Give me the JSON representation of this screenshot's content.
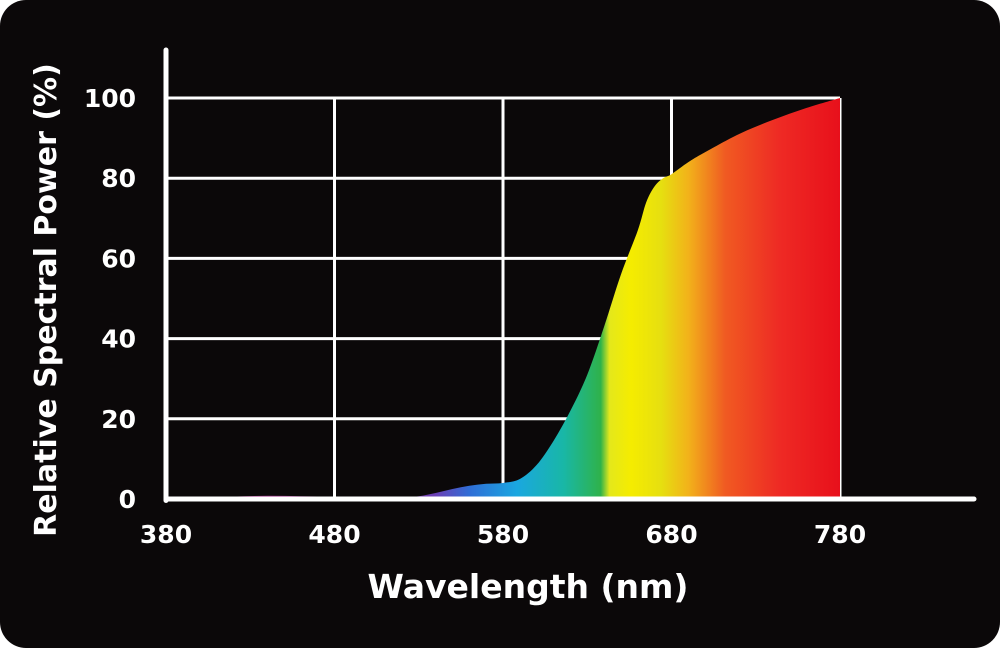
{
  "chart_data": {
    "type": "area",
    "xlabel": "Wavelength (nm)",
    "ylabel": "Relative Spectral Power (%)",
    "xlim": [
      380,
      780
    ],
    "ylim": [
      0,
      100
    ],
    "x_ticks": [
      "380",
      "480",
      "580",
      "680",
      "780"
    ],
    "y_ticks": [
      "0",
      "20",
      "40",
      "60",
      "80",
      "100"
    ],
    "grid": true,
    "legend": "none",
    "series": [
      {
        "x": [
          380,
          400,
          420,
          440,
          460,
          480,
          500,
          520,
          530,
          540,
          550,
          560,
          570,
          580,
          590,
          600,
          610,
          620,
          630,
          640,
          650,
          660,
          665,
          670,
          675,
          680,
          690,
          700,
          720,
          740,
          760,
          780
        ],
        "values": [
          0,
          0.3,
          0.6,
          0.8,
          0.7,
          0.6,
          0.5,
          0.5,
          0.7,
          1.5,
          2.5,
          3.3,
          3.8,
          4,
          5,
          8.5,
          14.5,
          22,
          31,
          43,
          56,
          67,
          74,
          78,
          80,
          81,
          84,
          86.5,
          91,
          94.5,
          97.5,
          100
        ]
      }
    ],
    "colors": {
      "background": "#0b0809",
      "grid": "#ffffff",
      "spectrum": [
        "#8a1e6e",
        "#a0237c",
        "#6a3fb5",
        "#2f6dd6",
        "#1aa7e0",
        "#19b7a6",
        "#2fb24a",
        "#e4e81b",
        "#f5ec00",
        "#f2b21a",
        "#f05a22",
        "#ee2a24",
        "#e8101b"
      ]
    }
  }
}
